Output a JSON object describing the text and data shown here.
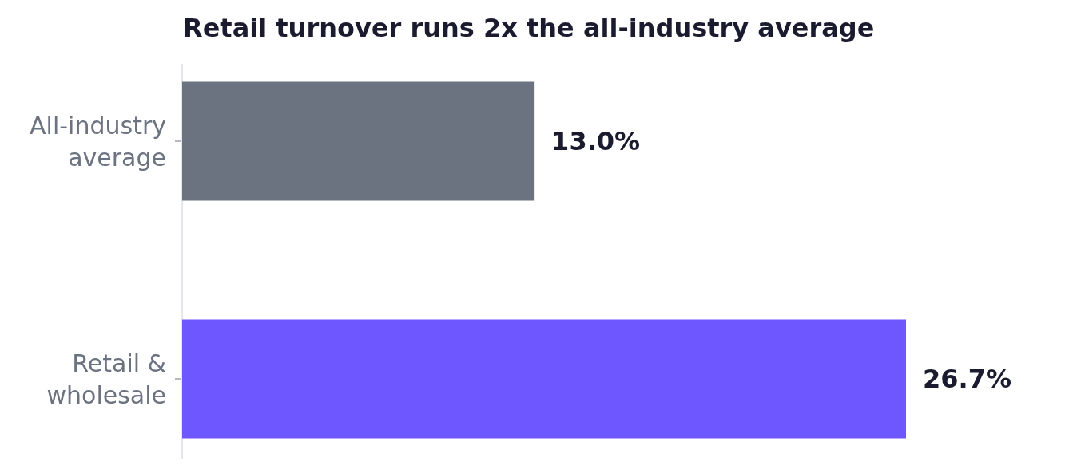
{
  "chart_data": {
    "type": "bar",
    "orientation": "horizontal",
    "title": "Retail turnover runs 2x the all-industry average",
    "categories": [
      "All-industry average",
      "Retail & wholesale"
    ],
    "values": [
      13.0,
      26.7
    ],
    "colors": [
      "#6b7280",
      "#6e57ff"
    ],
    "value_labels": [
      "13.0%",
      "26.7%"
    ]
  }
}
